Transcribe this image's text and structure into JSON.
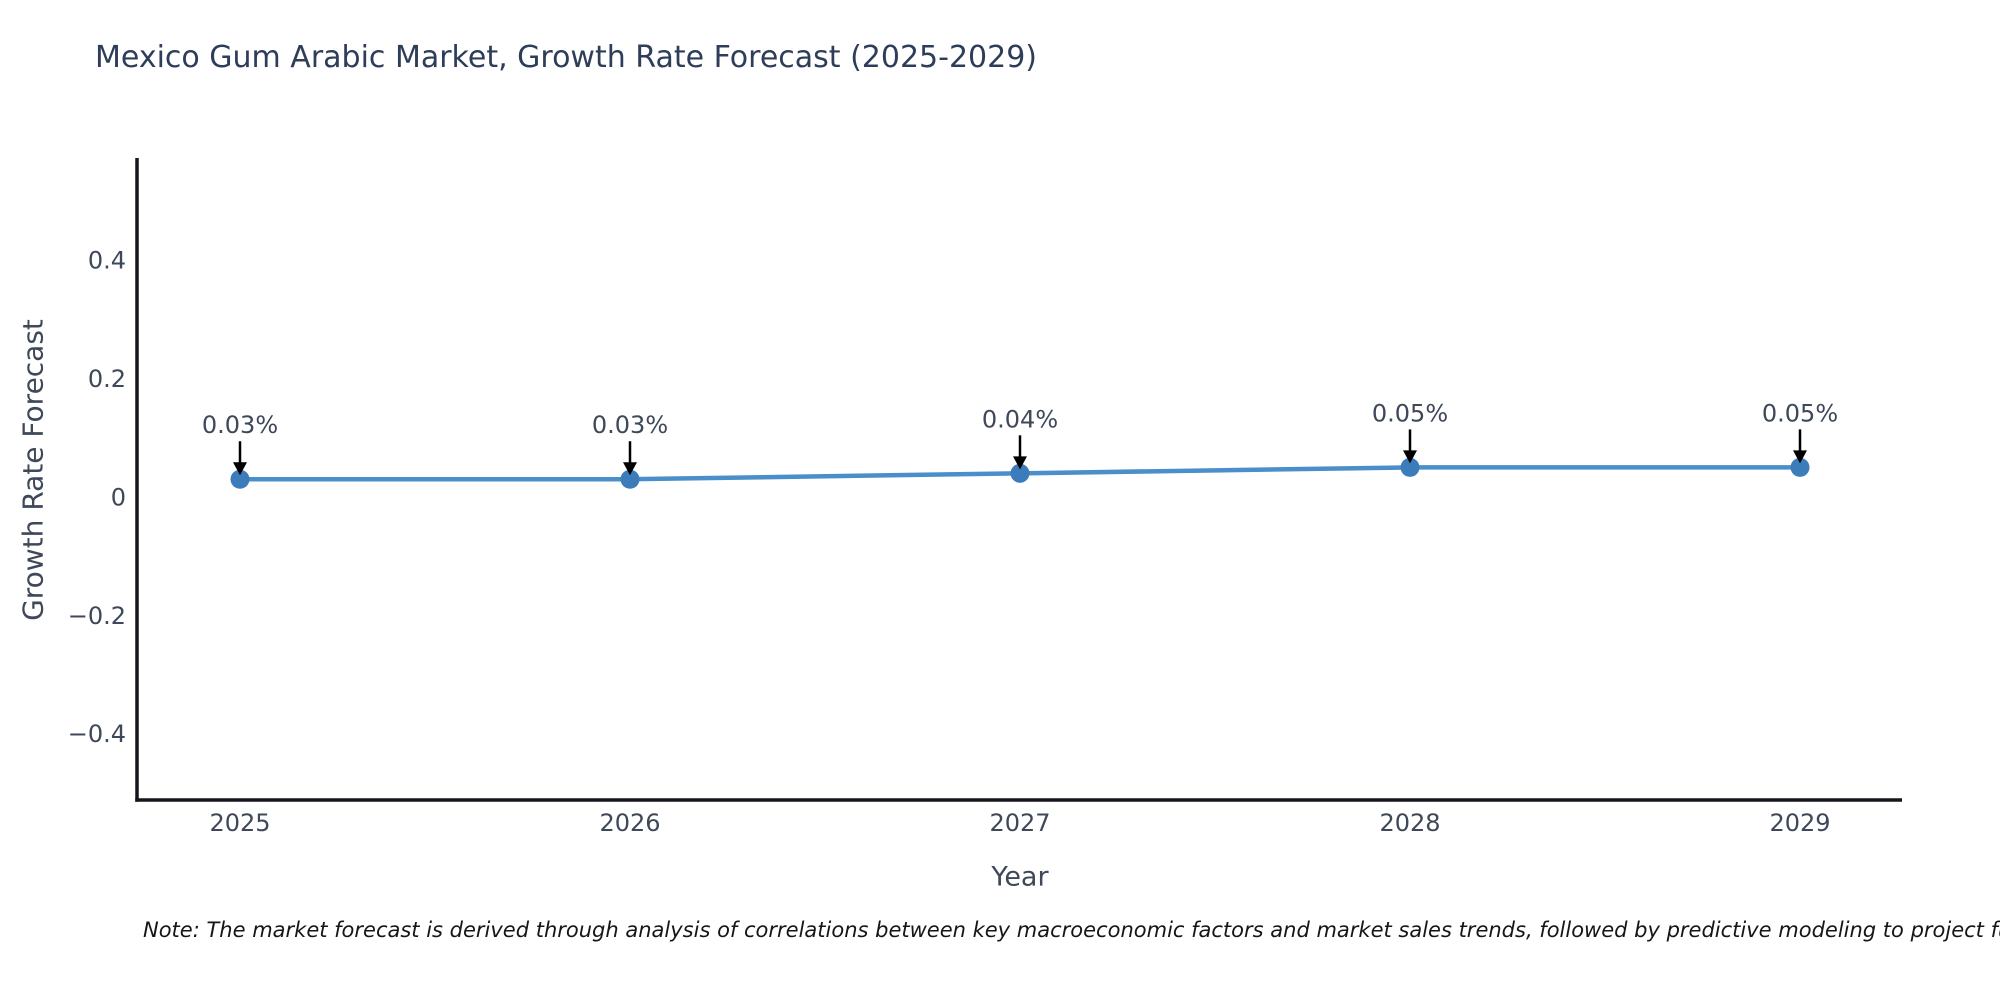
{
  "chart_data": {
    "type": "line",
    "title": "Mexico Gum Arabic Market, Growth Rate Forecast (2025-2029)",
    "xlabel": "Year",
    "ylabel": "Growth Rate Forecast",
    "x": [
      "2025",
      "2026",
      "2027",
      "2028",
      "2029"
    ],
    "series": [
      {
        "name": "Growth Rate Forecast",
        "values": [
          0.03,
          0.03,
          0.04,
          0.05,
          0.05
        ]
      }
    ],
    "point_labels": [
      "0.03%",
      "0.03%",
      "0.04%",
      "0.05%",
      "0.05%"
    ],
    "ylim": [
      -0.51,
      0.57
    ],
    "yticks": [
      0.4,
      0.2,
      0,
      -0.2,
      -0.4
    ],
    "ytick_labels": [
      "0.4",
      "0.2",
      "0",
      "−0.2",
      "−0.4"
    ],
    "grid": false,
    "legend": "none",
    "line_color": "#4a8fc9",
    "marker_color": "#3c7cba",
    "axis_color": "#15151d",
    "annotation_arrow_color": "#000000",
    "text_color": "#3e4859",
    "title_color": "#2e3d59"
  },
  "note": "Note: The market forecast is derived through analysis of correlations between key macroeconomic factors and market sales trends, followed by predictive modeling to project future sales."
}
